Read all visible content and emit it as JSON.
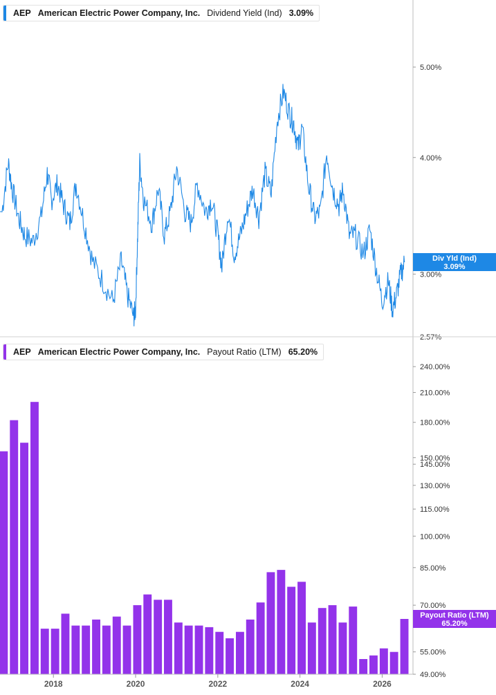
{
  "top_legend": {
    "ticker": "AEP",
    "company": "American Electric Power Company, Inc.",
    "metric": "Dividend Yield (Ind)",
    "value": "3.09%",
    "color": "#1e88e5"
  },
  "bottom_legend": {
    "ticker": "AEP",
    "company": "American Electric Power Company, Inc.",
    "metric": "Payout Ratio (LTM)",
    "value": "65.20%",
    "color": "#9333ea"
  },
  "top_tag": {
    "label": "Div Yld (Ind)",
    "value": "3.09%"
  },
  "bottom_tag": {
    "label": "Payout Ratio (LTM)",
    "value": "65.20%"
  },
  "chart_data": [
    {
      "type": "line",
      "name": "Dividend Yield (Ind)",
      "scale": "log",
      "y_ticks": [
        {
          "v": 5.0,
          "label": "5.00%"
        },
        {
          "v": 4.0,
          "label": "4.00%"
        },
        {
          "v": 3.0,
          "label": "3.00%"
        },
        {
          "v": 2.57,
          "label": "2.57%"
        }
      ],
      "ylim": [
        2.57,
        5.9
      ],
      "x": [
        2016.75,
        2016.9,
        2017.0,
        2017.15,
        2017.3,
        2017.5,
        2017.7,
        2017.85,
        2017.95,
        2018.1,
        2018.25,
        2018.4,
        2018.55,
        2018.75,
        2018.95,
        2019.2,
        2019.45,
        2019.65,
        2019.8,
        2019.95,
        2020.0,
        2020.05,
        2020.1,
        2020.2,
        2020.4,
        2020.55,
        2020.7,
        2020.85,
        2021.0,
        2021.2,
        2021.35,
        2021.5,
        2021.7,
        2021.85,
        2022.0,
        2022.1,
        2022.25,
        2022.4,
        2022.55,
        2022.7,
        2022.85,
        2023.0,
        2023.15,
        2023.3,
        2023.45,
        2023.6,
        2023.75,
        2023.85,
        2023.95,
        2024.05,
        2024.2,
        2024.35,
        2024.5,
        2024.65,
        2024.8,
        2024.95,
        2025.05,
        2025.2,
        2025.35,
        2025.55,
        2025.7,
        2025.85,
        2026.0,
        2026.15,
        2026.25,
        2026.35,
        2026.45,
        2026.55
      ],
      "values": [
        3.5,
        3.95,
        3.7,
        3.45,
        3.3,
        3.25,
        3.45,
        3.85,
        3.6,
        3.75,
        3.55,
        3.4,
        3.75,
        3.4,
        3.1,
        2.95,
        2.8,
        3.1,
        2.85,
        2.7,
        2.75,
        3.3,
        3.95,
        3.6,
        3.4,
        3.7,
        3.3,
        3.5,
        3.9,
        3.5,
        3.4,
        3.75,
        3.5,
        3.6,
        3.3,
        3.05,
        3.5,
        3.15,
        3.3,
        3.5,
        3.7,
        3.45,
        3.85,
        3.65,
        4.4,
        4.7,
        4.45,
        4.35,
        4.1,
        4.3,
        3.75,
        3.45,
        3.5,
        4.05,
        3.7,
        3.55,
        3.7,
        3.3,
        3.3,
        3.15,
        3.35,
        3.05,
        2.8,
        2.95,
        2.75,
        2.85,
        3.0,
        3.09
      ]
    },
    {
      "type": "bar",
      "name": "Payout Ratio (LTM)",
      "scale": "log",
      "y_ticks": [
        {
          "v": 240,
          "label": "240.00%"
        },
        {
          "v": 210,
          "label": "210.00%"
        },
        {
          "v": 180,
          "label": "180.00%"
        },
        {
          "v": 150,
          "label": "150.00%"
        },
        {
          "v": 145,
          "label": "145.00%"
        },
        {
          "v": 130,
          "label": "130.00%"
        },
        {
          "v": 115,
          "label": "115.00%"
        },
        {
          "v": 100,
          "label": "100.00%"
        },
        {
          "v": 85,
          "label": "85.00%"
        },
        {
          "v": 70,
          "label": "70.00%"
        },
        {
          "v": 55,
          "label": "55.00%"
        },
        {
          "v": 49,
          "label": "49.00%"
        }
      ],
      "ylim": [
        49,
        280
      ],
      "x": [
        2016.79,
        2017.04,
        2017.29,
        2017.54,
        2017.79,
        2018.04,
        2018.29,
        2018.54,
        2018.79,
        2019.04,
        2019.29,
        2019.54,
        2019.79,
        2020.04,
        2020.29,
        2020.54,
        2020.79,
        2021.04,
        2021.29,
        2021.54,
        2021.79,
        2022.04,
        2022.29,
        2022.54,
        2022.79,
        2023.04,
        2023.29,
        2023.54,
        2023.79,
        2024.04,
        2024.29,
        2024.54,
        2024.79,
        2025.04,
        2025.29,
        2025.54,
        2025.79,
        2026.04,
        2026.29,
        2026.54
      ],
      "values": [
        155,
        182,
        162,
        200,
        62,
        62,
        67,
        63,
        63,
        65,
        63,
        66,
        63,
        70,
        74,
        72,
        72,
        64,
        63,
        63,
        62.5,
        61,
        59,
        61,
        65,
        71,
        83,
        84,
        77,
        79,
        64,
        69,
        70,
        64,
        69.5,
        53,
        54,
        56,
        55,
        65.2
      ]
    }
  ],
  "x_axis": {
    "ticks": [
      {
        "v": 2018,
        "label": "2018"
      },
      {
        "v": 2020,
        "label": "2020"
      },
      {
        "v": 2022,
        "label": "2022"
      },
      {
        "v": 2024,
        "label": "2024"
      },
      {
        "v": 2026,
        "label": "2026"
      }
    ],
    "xlim": [
      2016.7,
      2026.75
    ]
  }
}
